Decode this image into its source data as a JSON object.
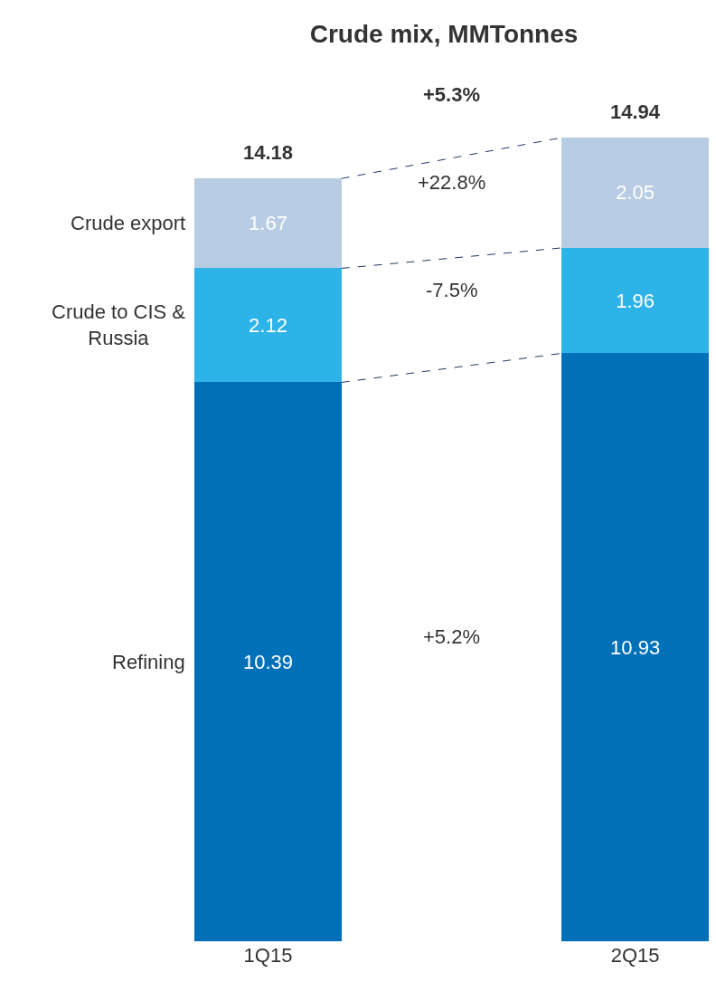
{
  "chart_data": {
    "type": "bar",
    "title": "Crude mix, MMTonnes",
    "stacked": true,
    "data_labels": true,
    "legend": false,
    "categories": [
      "1Q15",
      "2Q15"
    ],
    "series": [
      {
        "name": "Refining",
        "color": "#0070b8",
        "values": [
          10.39,
          10.93
        ]
      },
      {
        "name": "Crude to CIS & Russia",
        "color": "#2eb3e8",
        "values": [
          2.12,
          1.96
        ]
      },
      {
        "name": "Crude export",
        "color": "#b8cce4",
        "values": [
          1.67,
          2.05
        ]
      }
    ],
    "totals": [
      "14.18",
      "14.94"
    ],
    "annotations": [
      "+5.3%",
      "+5.2%",
      "-7.5%",
      "+22.8%"
    ]
  }
}
